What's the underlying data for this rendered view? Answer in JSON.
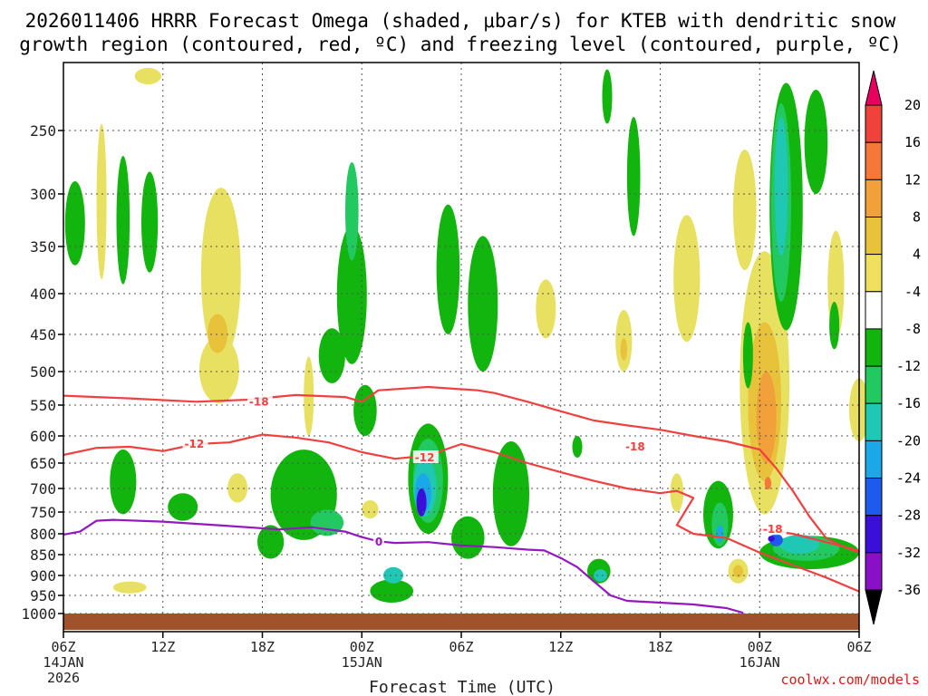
{
  "chart_data": {
    "type": "time-height contour plot",
    "title_line1": "2026011406 HRRR Forecast Omega (shaded, μbar/s) for KTEB with dendritic snow",
    "title_line2": "growth region (contoured, red, ºC) and freezing level (contoured, purple, ºC)",
    "xlabel": "Forecast Time (UTC)",
    "credit": "coolwx.com/models",
    "x_range_hours": [
      0,
      48
    ],
    "x_ticks": [
      {
        "h": 0,
        "label": "06Z",
        "sub1": "14JAN",
        "sub2": "2026"
      },
      {
        "h": 6,
        "label": "12Z"
      },
      {
        "h": 12,
        "label": "18Z"
      },
      {
        "h": 18,
        "label": "00Z",
        "sub1": "15JAN"
      },
      {
        "h": 24,
        "label": "06Z"
      },
      {
        "h": 30,
        "label": "12Z"
      },
      {
        "h": 36,
        "label": "18Z"
      },
      {
        "h": 42,
        "label": "00Z",
        "sub1": "16JAN"
      },
      {
        "h": 48,
        "label": "06Z"
      }
    ],
    "y_ticks_hpa": [
      250,
      300,
      350,
      400,
      450,
      500,
      550,
      600,
      650,
      700,
      750,
      800,
      850,
      900,
      950,
      1000
    ],
    "y_range_hpa": [
      200,
      1025
    ],
    "colorbar": {
      "labels": [
        "20",
        "16",
        "12",
        "8",
        "4",
        "-4",
        "-8",
        "-12",
        "-16",
        "-20",
        "-24",
        "-28",
        "-32",
        "-36"
      ],
      "colors": [
        "#e8005e",
        "#f0413a",
        "#f5773a",
        "#f2a03a",
        "#e8c23a",
        "#f0e060",
        "#ffffff",
        "#12b40e",
        "#22c860",
        "#20c8b4",
        "#1aa8e8",
        "#1e5aee",
        "#3a10d8",
        "#8a10c8",
        "#a8a8a8",
        "#000000"
      ]
    },
    "contours": [
      {
        "name": "dgz-upper-18",
        "label": "-18",
        "color": "#f04040",
        "points": [
          [
            0,
            536
          ],
          [
            4,
            540
          ],
          [
            8,
            545
          ],
          [
            11,
            542
          ],
          [
            14,
            535
          ],
          [
            17,
            538
          ],
          [
            18,
            545
          ],
          [
            19,
            528
          ],
          [
            22,
            523
          ],
          [
            25,
            528
          ],
          [
            26,
            532
          ],
          [
            28,
            545
          ],
          [
            30,
            560
          ],
          [
            32,
            575
          ],
          [
            34,
            583
          ],
          [
            36,
            590
          ],
          [
            38,
            600
          ],
          [
            40,
            610
          ],
          [
            42,
            625
          ],
          [
            43,
            660
          ],
          [
            44,
            705
          ],
          [
            45,
            760
          ],
          [
            46,
            810
          ],
          [
            47,
            830
          ],
          [
            48,
            845
          ]
        ]
      },
      {
        "name": "dgz-lower-12",
        "label": "-12",
        "color": "#f04040",
        "points": [
          [
            0,
            635
          ],
          [
            2,
            622
          ],
          [
            4,
            620
          ],
          [
            6,
            628
          ],
          [
            8,
            615
          ],
          [
            10,
            612
          ],
          [
            12,
            598
          ],
          [
            14,
            603
          ],
          [
            16,
            612
          ],
          [
            18,
            630
          ],
          [
            20,
            642
          ],
          [
            22,
            636
          ],
          [
            24,
            615
          ],
          [
            26,
            630
          ],
          [
            28,
            650
          ],
          [
            30,
            668
          ],
          [
            32,
            685
          ],
          [
            34,
            700
          ],
          [
            36,
            710
          ],
          [
            37,
            705
          ],
          [
            38,
            720
          ],
          [
            37,
            780
          ],
          [
            38,
            800
          ],
          [
            40,
            810
          ],
          [
            42,
            845
          ],
          [
            44,
            875
          ],
          [
            46,
            905
          ],
          [
            48,
            940
          ]
        ]
      },
      {
        "name": "dgz-mid-18",
        "label": "-18",
        "color": "#f04040",
        "points": [
          [
            42,
            790
          ],
          [
            44,
            800
          ],
          [
            46,
            820
          ],
          [
            48,
            840
          ]
        ]
      },
      {
        "name": "freezing-level",
        "label": "0",
        "color": "#9418c0",
        "points": [
          [
            0,
            802
          ],
          [
            1,
            795
          ],
          [
            2,
            770
          ],
          [
            3,
            768
          ],
          [
            6,
            772
          ],
          [
            10,
            782
          ],
          [
            13,
            790
          ],
          [
            15,
            785
          ],
          [
            17,
            795
          ],
          [
            18,
            808
          ],
          [
            19,
            818
          ],
          [
            20,
            822
          ],
          [
            22,
            820
          ],
          [
            24,
            828
          ],
          [
            26,
            832
          ],
          [
            28,
            838
          ],
          [
            29,
            840
          ],
          [
            30,
            858
          ],
          [
            31,
            880
          ],
          [
            32,
            915
          ],
          [
            33,
            950
          ],
          [
            34,
            965
          ],
          [
            36,
            970
          ],
          [
            38,
            975
          ],
          [
            40,
            985
          ],
          [
            41,
            998
          ]
        ]
      }
    ],
    "contour_labels": [
      {
        "text": "-18",
        "h": 11.2,
        "p": 545,
        "color": "#f04040"
      },
      {
        "text": "-12",
        "h": 7.3,
        "p": 615,
        "color": "#f04040"
      },
      {
        "text": "-12",
        "h": 21.2,
        "p": 640,
        "color": "#f04040"
      },
      {
        "text": "-18",
        "h": 33.9,
        "p": 620,
        "color": "#f04040"
      },
      {
        "text": "-18",
        "h": 42.2,
        "p": 790,
        "color": "#f04040"
      },
      {
        "text": "0",
        "h": 18.8,
        "p": 820,
        "color": "#9418c0"
      }
    ],
    "shading": [
      {
        "cls": "up4",
        "h": 5.1,
        "p": 210,
        "rh": 0.8,
        "dp": 12
      },
      {
        "cls": "up4",
        "h": 9.5,
        "p": 390,
        "rh": 1.2,
        "dp": 190
      },
      {
        "cls": "up4",
        "h": 2.3,
        "p": 315,
        "rh": 0.3,
        "dp": 140
      },
      {
        "cls": "up4",
        "h": 9.4,
        "p": 500,
        "rh": 1.2,
        "dp": 95
      },
      {
        "cls": "up8",
        "h": 9.3,
        "p": 450,
        "rh": 0.6,
        "dp": 50
      },
      {
        "cls": "up4",
        "h": 14.8,
        "p": 540,
        "rh": 0.3,
        "dp": 120
      },
      {
        "cls": "up4",
        "h": 10.5,
        "p": 700,
        "rh": 0.6,
        "dp": 60
      },
      {
        "cls": "up4",
        "h": 4.0,
        "p": 930,
        "rh": 1.0,
        "dp": 30
      },
      {
        "cls": "up4",
        "h": 18.5,
        "p": 745,
        "rh": 0.5,
        "dp": 40
      },
      {
        "cls": "up4",
        "h": 29.1,
        "p": 420,
        "rh": 0.6,
        "dp": 70
      },
      {
        "cls": "up4",
        "h": 33.8,
        "p": 460,
        "rh": 0.5,
        "dp": 80
      },
      {
        "cls": "up8",
        "h": 33.8,
        "p": 470,
        "rh": 0.2,
        "dp": 30
      },
      {
        "cls": "up4",
        "h": 37.6,
        "p": 390,
        "rh": 0.8,
        "dp": 140
      },
      {
        "cls": "up4",
        "h": 37.0,
        "p": 710,
        "rh": 0.4,
        "dp": 80
      },
      {
        "cls": "up4",
        "h": 41.1,
        "p": 320,
        "rh": 0.7,
        "dp": 110
      },
      {
        "cls": "up4",
        "h": 42.3,
        "p": 555,
        "rh": 1.5,
        "dp": 400
      },
      {
        "cls": "up8",
        "h": 42.3,
        "p": 560,
        "rh": 1.0,
        "dp": 250
      },
      {
        "cls": "up12",
        "h": 42.4,
        "p": 575,
        "rh": 0.6,
        "dp": 150
      },
      {
        "cls": "up16",
        "h": 42.5,
        "p": 690,
        "rh": 0.2,
        "dp": 25
      },
      {
        "cls": "up4",
        "h": 40.7,
        "p": 890,
        "rh": 0.6,
        "dp": 60
      },
      {
        "cls": "up8",
        "h": 40.7,
        "p": 890,
        "rh": 0.3,
        "dp": 30
      },
      {
        "cls": "up4",
        "h": 46.6,
        "p": 395,
        "rh": 0.5,
        "dp": 120
      },
      {
        "cls": "up4",
        "h": 48.0,
        "p": 560,
        "rh": 0.6,
        "dp": 100
      },
      {
        "cls": "dn4",
        "h": 0.7,
        "p": 330,
        "rh": 0.6,
        "dp": 80
      },
      {
        "cls": "dn4",
        "h": 3.6,
        "p": 330,
        "rh": 0.4,
        "dp": 120
      },
      {
        "cls": "dn4",
        "h": 5.2,
        "p": 330,
        "rh": 0.5,
        "dp": 95
      },
      {
        "cls": "dn4",
        "h": 3.6,
        "p": 690,
        "rh": 0.8,
        "dp": 130
      },
      {
        "cls": "dn4",
        "h": 7.2,
        "p": 740,
        "rh": 0.9,
        "dp": 60
      },
      {
        "cls": "dn4",
        "h": 16.2,
        "p": 480,
        "rh": 0.8,
        "dp": 75
      },
      {
        "cls": "dn4",
        "h": 14.5,
        "p": 720,
        "rh": 2.0,
        "dp": 190
      },
      {
        "cls": "dn8",
        "h": 15.9,
        "p": 775,
        "rh": 1.0,
        "dp": 60
      },
      {
        "cls": "dn4",
        "h": 12.5,
        "p": 820,
        "rh": 0.8,
        "dp": 80
      },
      {
        "cls": "dn4",
        "h": 17.4,
        "p": 410,
        "rh": 0.9,
        "dp": 160
      },
      {
        "cls": "dn8",
        "h": 17.4,
        "p": 320,
        "rh": 0.4,
        "dp": 90
      },
      {
        "cls": "dn4",
        "h": 18.2,
        "p": 560,
        "rh": 0.7,
        "dp": 80
      },
      {
        "cls": "dn4",
        "h": 19.8,
        "p": 940,
        "rh": 1.3,
        "dp": 60
      },
      {
        "cls": "dn12",
        "h": 19.9,
        "p": 900,
        "rh": 0.6,
        "dp": 40
      },
      {
        "cls": "dn4",
        "h": 22.0,
        "p": 690,
        "rh": 1.2,
        "dp": 220
      },
      {
        "cls": "dn8",
        "h": 22.0,
        "p": 690,
        "rh": 0.9,
        "dp": 170
      },
      {
        "cls": "dn12",
        "h": 21.8,
        "p": 700,
        "rh": 0.7,
        "dp": 120
      },
      {
        "cls": "dn16",
        "h": 21.7,
        "p": 710,
        "rh": 0.5,
        "dp": 80
      },
      {
        "cls": "dn24",
        "h": 21.6,
        "p": 730,
        "rh": 0.3,
        "dp": 60
      },
      {
        "cls": "dn4",
        "h": 23.2,
        "p": 380,
        "rh": 0.7,
        "dp": 140
      },
      {
        "cls": "dn4",
        "h": 25.3,
        "p": 420,
        "rh": 0.9,
        "dp": 160
      },
      {
        "cls": "dn4",
        "h": 27.0,
        "p": 720,
        "rh": 1.1,
        "dp": 220
      },
      {
        "cls": "dn4",
        "h": 24.4,
        "p": 810,
        "rh": 1.0,
        "dp": 100
      },
      {
        "cls": "dn4",
        "h": 31.0,
        "p": 620,
        "rh": 0.3,
        "dp": 40
      },
      {
        "cls": "dn4",
        "h": 32.3,
        "p": 890,
        "rh": 0.7,
        "dp": 60
      },
      {
        "cls": "dn12",
        "h": 32.4,
        "p": 900,
        "rh": 0.4,
        "dp": 30
      },
      {
        "cls": "dn4",
        "h": 34.4,
        "p": 290,
        "rh": 0.4,
        "dp": 100
      },
      {
        "cls": "dn4",
        "h": 32.8,
        "p": 225,
        "rh": 0.3,
        "dp": 40
      },
      {
        "cls": "dn4",
        "h": 39.5,
        "p": 760,
        "rh": 0.9,
        "dp": 150
      },
      {
        "cls": "dn8",
        "h": 39.6,
        "p": 780,
        "rh": 0.5,
        "dp": 100
      },
      {
        "cls": "dn16",
        "h": 39.6,
        "p": 800,
        "rh": 0.2,
        "dp": 40
      },
      {
        "cls": "dn4",
        "h": 41.3,
        "p": 480,
        "rh": 0.3,
        "dp": 90
      },
      {
        "cls": "dn4",
        "h": 43.6,
        "p": 330,
        "rh": 1.0,
        "dp": 230
      },
      {
        "cls": "dn8",
        "h": 43.3,
        "p": 320,
        "rh": 0.6,
        "dp": 180
      },
      {
        "cls": "dn12",
        "h": 43.3,
        "p": 300,
        "rh": 0.4,
        "dp": 120
      },
      {
        "cls": "dn4",
        "h": 45.4,
        "p": 260,
        "rh": 0.7,
        "dp": 80
      },
      {
        "cls": "dn4",
        "h": 46.5,
        "p": 440,
        "rh": 0.3,
        "dp": 60
      },
      {
        "cls": "dn4",
        "h": 45.0,
        "p": 845,
        "rh": 3.0,
        "dp": 80
      },
      {
        "cls": "dn8",
        "h": 44.8,
        "p": 835,
        "rh": 2.0,
        "dp": 60
      },
      {
        "cls": "dn12",
        "h": 44.4,
        "p": 825,
        "rh": 1.2,
        "dp": 45
      },
      {
        "cls": "dn20",
        "h": 43.0,
        "p": 815,
        "rh": 0.4,
        "dp": 30
      },
      {
        "cls": "dn24",
        "h": 42.7,
        "p": 812,
        "rh": 0.2,
        "dp": 15
      }
    ]
  }
}
